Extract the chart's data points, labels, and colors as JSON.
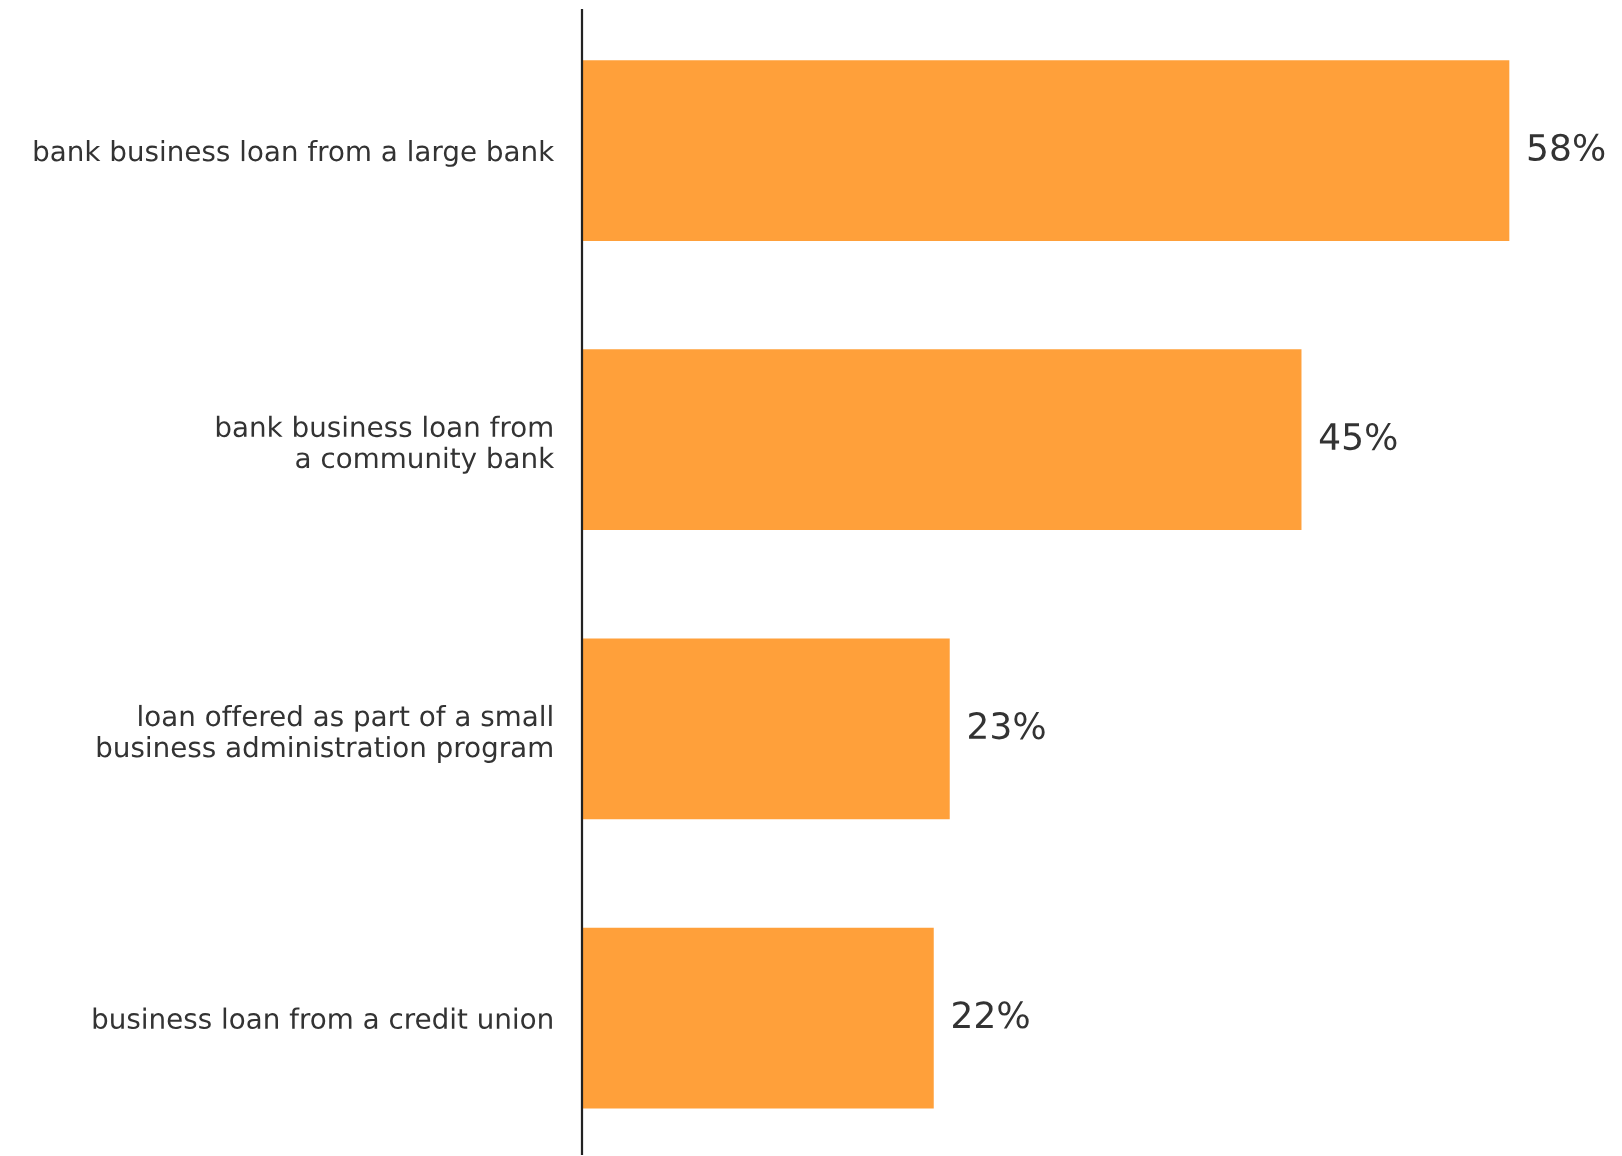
{
  "chart_data": {
    "type": "bar",
    "orientation": "horizontal",
    "categories": [
      "bank business loan from a large bank",
      "bank business loan from\na community bank",
      "loan offered as part of a small\nbusiness administration program",
      "business loan from a credit union"
    ],
    "values": [
      58,
      45,
      23,
      22
    ],
    "value_labels": [
      "58%",
      "45%",
      "23%",
      "22%"
    ],
    "color": "#ffa03a",
    "grid": false,
    "legend": false,
    "tick_labels": "y"
  }
}
